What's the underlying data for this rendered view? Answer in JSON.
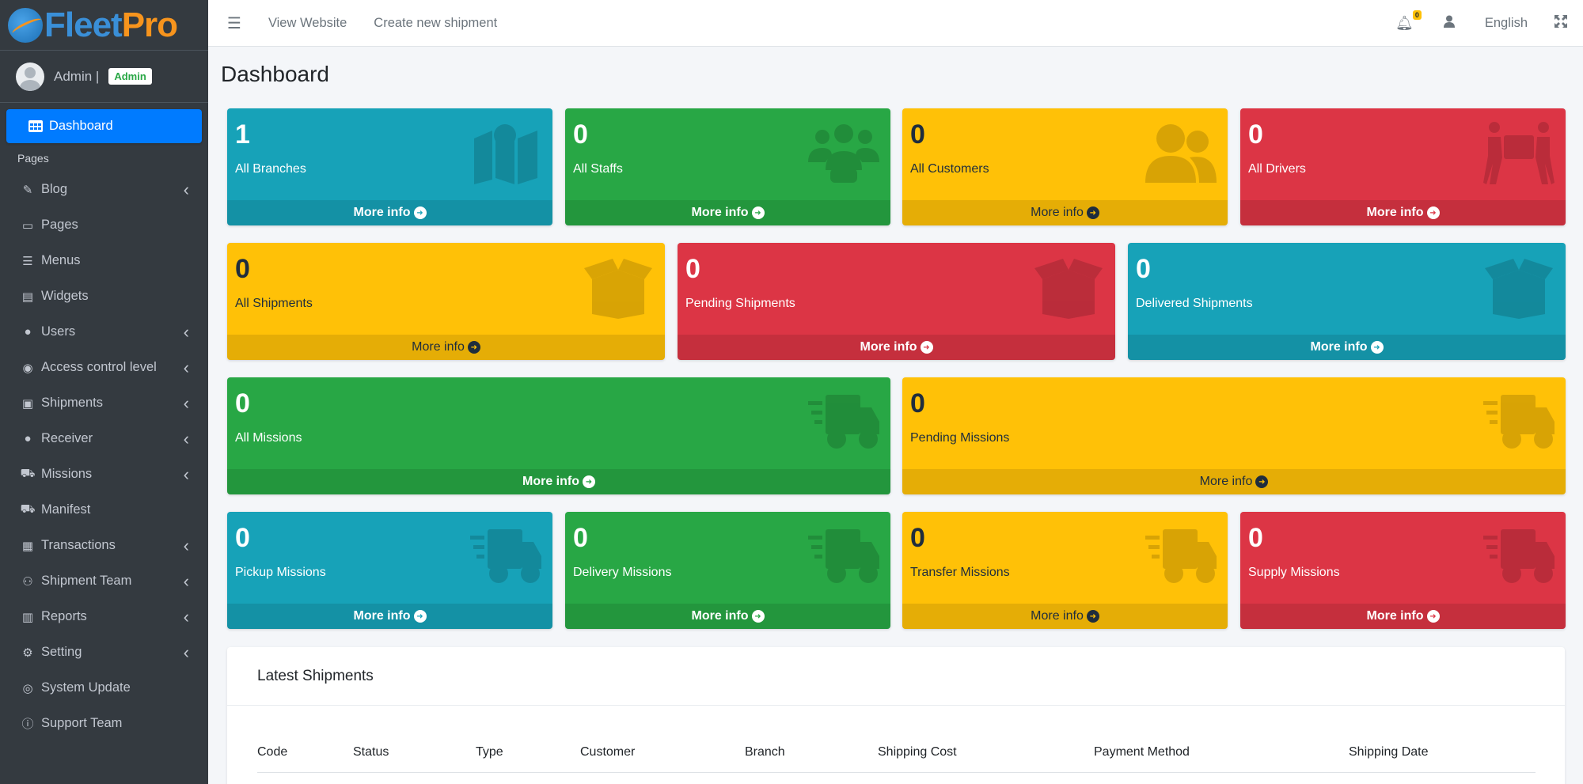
{
  "brand": {
    "part1": "Fleet",
    "part2": "Pro"
  },
  "user": {
    "name": "Admin |",
    "role": "Admin"
  },
  "sidebar": {
    "dashboard": "Dashboard",
    "pages_header": "Pages",
    "items": [
      {
        "label": "Blog",
        "icon": "blog-icon",
        "chevron": true
      },
      {
        "label": "Pages",
        "icon": "pages-icon",
        "chevron": false
      },
      {
        "label": "Menus",
        "icon": "list-icon",
        "chevron": false
      },
      {
        "label": "Widgets",
        "icon": "widgets-icon",
        "chevron": false
      },
      {
        "label": "Users",
        "icon": "user-icon",
        "chevron": true
      },
      {
        "label": "Access control level",
        "icon": "access-icon",
        "chevron": true
      },
      {
        "label": "Shipments",
        "icon": "shipments-icon",
        "chevron": true
      },
      {
        "label": "Receiver",
        "icon": "user-icon",
        "chevron": true
      },
      {
        "label": "Missions",
        "icon": "truck-icon",
        "chevron": true
      },
      {
        "label": "Manifest",
        "icon": "truck-icon",
        "chevron": false
      },
      {
        "label": "Transactions",
        "icon": "transactions-icon",
        "chevron": true
      },
      {
        "label": "Shipment Team",
        "icon": "team-icon",
        "chevron": true
      },
      {
        "label": "Reports",
        "icon": "reports-icon",
        "chevron": true
      },
      {
        "label": "Setting",
        "icon": "settings-icon",
        "chevron": true
      },
      {
        "label": "System Update",
        "icon": "update-icon",
        "chevron": false
      },
      {
        "label": "Support Team",
        "icon": "info-icon",
        "chevron": false
      }
    ]
  },
  "topbar": {
    "view_website": "View Website",
    "create_shipment": "Create new shipment",
    "notification_count": "0",
    "language": "English"
  },
  "page_title": "Dashboard",
  "more_info": "More info",
  "boxes": [
    {
      "value": "1",
      "label": "All Branches",
      "color": "#17a2b8",
      "icon": "map-icon"
    },
    {
      "value": "0",
      "label": "All Staffs",
      "color": "#28a745",
      "icon": "users-icon"
    },
    {
      "value": "0",
      "label": "All Customers",
      "color": "#ffc107",
      "icon": "user-friends-icon"
    },
    {
      "value": "0",
      "label": "All Drivers",
      "color": "#dc3545",
      "icon": "people-carry-icon"
    },
    {
      "value": "0",
      "label": "All Shipments",
      "color": "#ffc107",
      "icon": "box-open-icon"
    },
    {
      "value": "0",
      "label": "Pending Shipments",
      "color": "#dc3545",
      "icon": "box-open-icon"
    },
    {
      "value": "0",
      "label": "Delivered Shipments",
      "color": "#17a2b8",
      "icon": "box-open-icon"
    },
    {
      "value": "0",
      "label": "All Missions",
      "color": "#28a745",
      "icon": "shipping-fast-icon"
    },
    {
      "value": "0",
      "label": "Pending Missions",
      "color": "#ffc107",
      "icon": "shipping-fast-icon"
    },
    {
      "value": "0",
      "label": "Pickup Missions",
      "color": "#17a2b8",
      "icon": "shipping-fast-icon"
    },
    {
      "value": "0",
      "label": "Delivery Missions",
      "color": "#28a745",
      "icon": "shipping-fast-icon"
    },
    {
      "value": "0",
      "label": "Transfer Missions",
      "color": "#ffc107",
      "icon": "shipping-fast-icon"
    },
    {
      "value": "0",
      "label": "Supply Missions",
      "color": "#dc3545",
      "icon": "shipping-fast-icon"
    }
  ],
  "latest_shipments": {
    "title": "Latest Shipments",
    "columns": [
      "Code",
      "Status",
      "Type",
      "Customer",
      "Branch",
      "Shipping Cost",
      "Payment Method",
      "Shipping Date"
    ]
  }
}
